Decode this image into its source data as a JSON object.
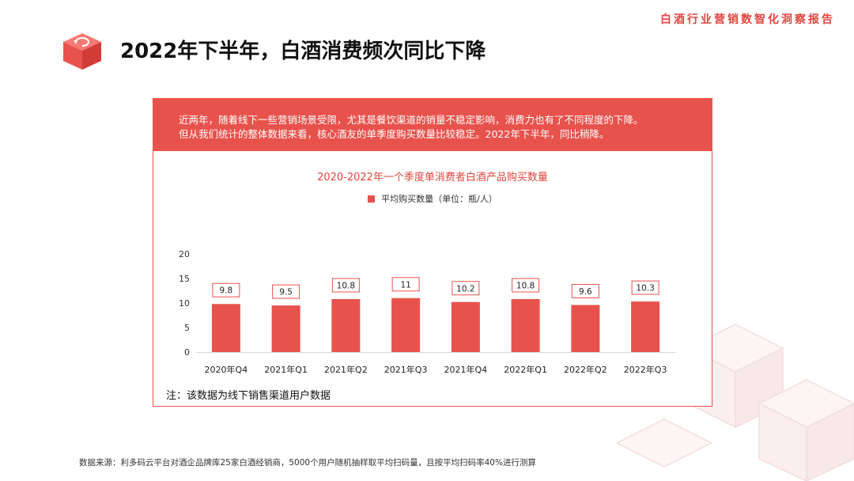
{
  "report_tag": "白酒行业营销数智化洞察报告",
  "page_title": "2022年下半年，白酒消费频次同比下降",
  "banner": {
    "line1": "近两年，随着线下一些营销场景受限，尤其是餐饮渠道的销量不稳定影响，消费力也有了不同程度的下降。",
    "line2": "但从我们统计的整体数据来看，核心酒友的单季度购买数量比较稳定。2022年下半年，同比稍降。"
  },
  "note": "注：该数据为线下销售渠道用户数据",
  "source": "数据来源：利多码云平台对酒企品牌库25家白酒经销商，5000个用户随机抽样取平均扫码量，且按平均扫码率40%进行测算",
  "colors": {
    "accent": "#e8524c",
    "title_red": "#e0443e"
  },
  "icons": {
    "logo": "red-cube-refresh-icon"
  },
  "chart_data": {
    "type": "bar",
    "title": "2020-2022年一个季度单消费者白酒产品购买数量",
    "categories": [
      "2020年Q4",
      "2021年Q1",
      "2021年Q2",
      "2021年Q3",
      "2021年Q4",
      "2022年Q1",
      "2022年Q2",
      "2022年Q3"
    ],
    "series": [
      {
        "name": "平均购买数量（单位：瓶/人）",
        "values": [
          9.8,
          9.5,
          10.8,
          11,
          10.2,
          10.8,
          9.6,
          10.3
        ]
      }
    ],
    "yticks": [
      0,
      5,
      10,
      15,
      20
    ],
    "ylim": [
      0,
      20
    ],
    "data_labels": true,
    "grid": false,
    "legend_position": "top-center"
  }
}
